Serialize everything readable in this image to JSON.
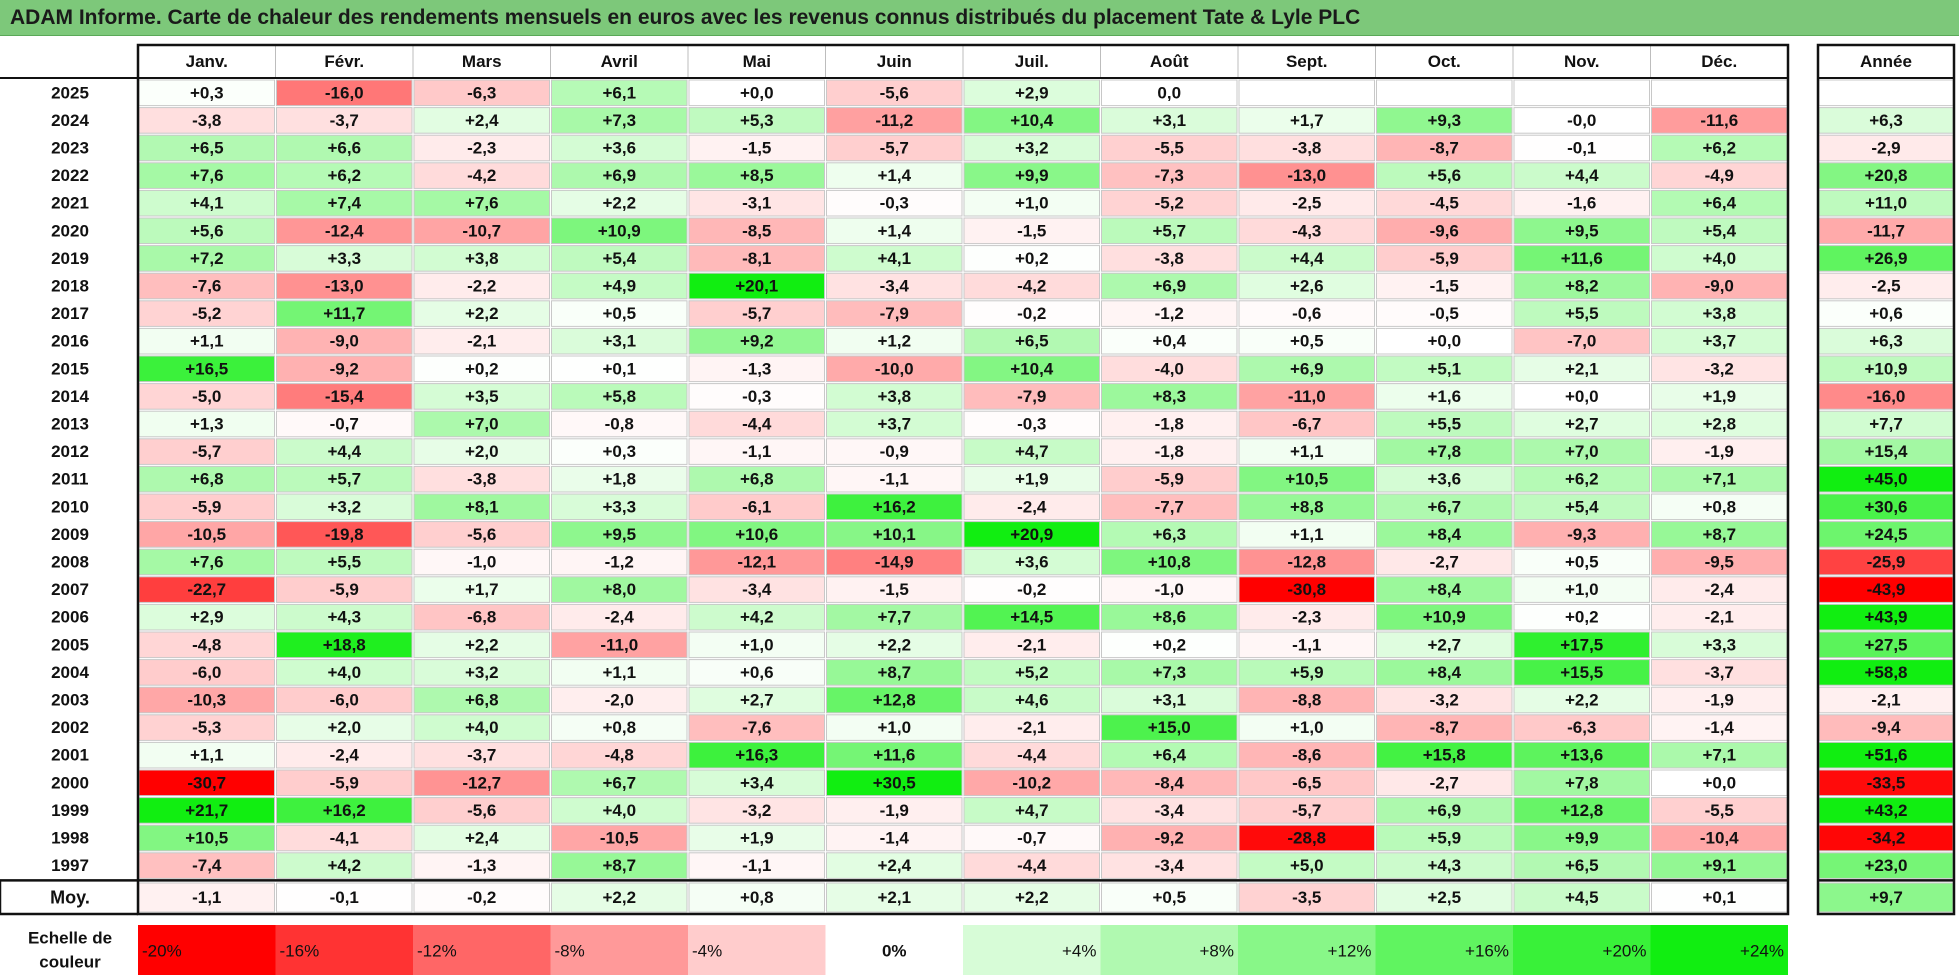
{
  "title": "ADAM Informe. Carte de chaleur des rendements mensuels en euros avec les revenus connus distribués du placement Tate & Lyle PLC",
  "chart_data": {
    "type": "heatmap",
    "title": "ADAM Informe. Carte de chaleur des rendements mensuels en euros avec les revenus connus distribués du placement Tate & Lyle PLC",
    "columns": [
      "Janv.",
      "Févr.",
      "Mars",
      "Avril",
      "Mai",
      "Juin",
      "Juil.",
      "Août",
      "Sept.",
      "Oct.",
      "Nov.",
      "Déc."
    ],
    "annual_header": "Année",
    "rows": [
      {
        "year": "2025",
        "values": [
          "+0,3",
          "-16,0",
          "-6,3",
          "+6,1",
          "+0,0",
          "-5,6",
          "+2,9",
          "0,0",
          "",
          "",
          "",
          ""
        ],
        "annual": ""
      },
      {
        "year": "2024",
        "values": [
          "-3,8",
          "-3,7",
          "+2,4",
          "+7,3",
          "+5,3",
          "-11,2",
          "+10,4",
          "+3,1",
          "+1,7",
          "+9,3",
          "-0,0",
          "-11,6"
        ],
        "annual": "+6,3"
      },
      {
        "year": "2023",
        "values": [
          "+6,5",
          "+6,6",
          "-2,3",
          "+3,6",
          "-1,5",
          "-5,7",
          "+3,2",
          "-5,5",
          "-3,8",
          "-8,7",
          "-0,1",
          "+6,2"
        ],
        "annual": "-2,9"
      },
      {
        "year": "2022",
        "values": [
          "+7,6",
          "+6,2",
          "-4,2",
          "+6,9",
          "+8,5",
          "+1,4",
          "+9,9",
          "-7,3",
          "-13,0",
          "+5,6",
          "+4,4",
          "-4,9"
        ],
        "annual": "+20,8"
      },
      {
        "year": "2021",
        "values": [
          "+4,1",
          "+7,4",
          "+7,6",
          "+2,2",
          "-3,1",
          "-0,3",
          "+1,0",
          "-5,2",
          "-2,5",
          "-4,5",
          "-1,6",
          "+6,4"
        ],
        "annual": "+11,0"
      },
      {
        "year": "2020",
        "values": [
          "+5,6",
          "-12,4",
          "-10,7",
          "+10,9",
          "-8,5",
          "+1,4",
          "-1,5",
          "+5,7",
          "-4,3",
          "-9,6",
          "+9,5",
          "+5,4"
        ],
        "annual": "-11,7"
      },
      {
        "year": "2019",
        "values": [
          "+7,2",
          "+3,3",
          "+3,8",
          "+5,4",
          "-8,1",
          "+4,1",
          "+0,2",
          "-3,8",
          "+4,4",
          "-5,9",
          "+11,6",
          "+4,0"
        ],
        "annual": "+26,9"
      },
      {
        "year": "2018",
        "values": [
          "-7,6",
          "-13,0",
          "-2,2",
          "+4,9",
          "+20,1",
          "-3,4",
          "-4,2",
          "+6,9",
          "+2,6",
          "-1,5",
          "+8,2",
          "-9,0"
        ],
        "annual": "-2,5"
      },
      {
        "year": "2017",
        "values": [
          "-5,2",
          "+11,7",
          "+2,2",
          "+0,5",
          "-5,7",
          "-7,9",
          "-0,2",
          "-1,2",
          "-0,6",
          "-0,5",
          "+5,5",
          "+3,8"
        ],
        "annual": "+0,6"
      },
      {
        "year": "2016",
        "values": [
          "+1,1",
          "-9,0",
          "-2,1",
          "+3,1",
          "+9,2",
          "+1,2",
          "+6,5",
          "+0,4",
          "+0,5",
          "+0,0",
          "-7,0",
          "+3,7"
        ],
        "annual": "+6,3"
      },
      {
        "year": "2015",
        "values": [
          "+16,5",
          "-9,2",
          "+0,2",
          "+0,1",
          "-1,3",
          "-10,0",
          "+10,4",
          "-4,0",
          "+6,9",
          "+5,1",
          "+2,1",
          "-3,2"
        ],
        "annual": "+10,9"
      },
      {
        "year": "2014",
        "values": [
          "-5,0",
          "-15,4",
          "+3,5",
          "+5,8",
          "-0,3",
          "+3,8",
          "-7,9",
          "+8,3",
          "-11,0",
          "+1,6",
          "+0,0",
          "+1,9"
        ],
        "annual": "-16,0"
      },
      {
        "year": "2013",
        "values": [
          "+1,3",
          "-0,7",
          "+7,0",
          "-0,8",
          "-4,4",
          "+3,7",
          "-0,3",
          "-1,8",
          "-6,7",
          "+5,5",
          "+2,7",
          "+2,8"
        ],
        "annual": "+7,7"
      },
      {
        "year": "2012",
        "values": [
          "-5,7",
          "+4,4",
          "+2,0",
          "+0,3",
          "-1,1",
          "-0,9",
          "+4,7",
          "-1,8",
          "+1,1",
          "+7,8",
          "+7,0",
          "-1,9"
        ],
        "annual": "+15,4"
      },
      {
        "year": "2011",
        "values": [
          "+6,8",
          "+5,7",
          "-3,8",
          "+1,8",
          "+6,8",
          "-1,1",
          "+1,9",
          "-5,9",
          "+10,5",
          "+3,6",
          "+6,2",
          "+7,1"
        ],
        "annual": "+45,0"
      },
      {
        "year": "2010",
        "values": [
          "-5,9",
          "+3,2",
          "+8,1",
          "+3,3",
          "-6,1",
          "+16,2",
          "-2,4",
          "-7,7",
          "+8,8",
          "+6,7",
          "+5,4",
          "+0,8"
        ],
        "annual": "+30,6"
      },
      {
        "year": "2009",
        "values": [
          "-10,5",
          "-19,8",
          "-5,6",
          "+9,5",
          "+10,6",
          "+10,1",
          "+20,9",
          "+6,3",
          "+1,1",
          "+8,4",
          "-9,3",
          "+8,7"
        ],
        "annual": "+24,5"
      },
      {
        "year": "2008",
        "values": [
          "+7,6",
          "+5,5",
          "-1,0",
          "-1,2",
          "-12,1",
          "-14,9",
          "+3,6",
          "+10,8",
          "-12,8",
          "-2,7",
          "+0,5",
          "-9,5"
        ],
        "annual": "-25,9"
      },
      {
        "year": "2007",
        "values": [
          "-22,7",
          "-5,9",
          "+1,7",
          "+8,0",
          "-3,4",
          "-1,5",
          "-0,2",
          "-1,0",
          "-30,8",
          "+8,4",
          "+1,0",
          "-2,4"
        ],
        "annual": "-43,9"
      },
      {
        "year": "2006",
        "values": [
          "+2,9",
          "+4,3",
          "-6,8",
          "-2,4",
          "+4,2",
          "+7,7",
          "+14,5",
          "+8,6",
          "-2,3",
          "+10,9",
          "+0,2",
          "-2,1"
        ],
        "annual": "+43,9"
      },
      {
        "year": "2005",
        "values": [
          "-4,8",
          "+18,8",
          "+2,2",
          "-11,0",
          "+1,0",
          "+2,2",
          "-2,1",
          "+0,2",
          "-1,1",
          "+2,7",
          "+17,5",
          "+3,3"
        ],
        "annual": "+27,5"
      },
      {
        "year": "2004",
        "values": [
          "-6,0",
          "+4,0",
          "+3,2",
          "+1,1",
          "+0,6",
          "+8,7",
          "+5,2",
          "+7,3",
          "+5,9",
          "+8,4",
          "+15,5",
          "-3,7"
        ],
        "annual": "+58,8"
      },
      {
        "year": "2003",
        "values": [
          "-10,3",
          "-6,0",
          "+6,8",
          "-2,0",
          "+2,7",
          "+12,8",
          "+4,6",
          "+3,1",
          "-8,8",
          "-3,2",
          "+2,2",
          "-1,9"
        ],
        "annual": "-2,1"
      },
      {
        "year": "2002",
        "values": [
          "-5,3",
          "+2,0",
          "+4,0",
          "+0,8",
          "-7,6",
          "+1,0",
          "-2,1",
          "+15,0",
          "+1,0",
          "-8,7",
          "-6,3",
          "-1,4"
        ],
        "annual": "-9,4"
      },
      {
        "year": "2001",
        "values": [
          "+1,1",
          "-2,4",
          "-3,7",
          "-4,8",
          "+16,3",
          "+11,6",
          "-4,4",
          "+6,4",
          "-8,6",
          "+15,8",
          "+13,6",
          "+7,1"
        ],
        "annual": "+51,6"
      },
      {
        "year": "2000",
        "values": [
          "-30,7",
          "-5,9",
          "-12,7",
          "+6,7",
          "+3,4",
          "+30,5",
          "-10,2",
          "-8,4",
          "-6,5",
          "-2,7",
          "+7,8",
          "+0,0"
        ],
        "annual": "-33,5"
      },
      {
        "year": "1999",
        "values": [
          "+21,7",
          "+16,2",
          "-5,6",
          "+4,0",
          "-3,2",
          "-1,9",
          "+4,7",
          "-3,4",
          "-5,7",
          "+6,9",
          "+12,8",
          "-5,5"
        ],
        "annual": "+43,2"
      },
      {
        "year": "1998",
        "values": [
          "+10,5",
          "-4,1",
          "+2,4",
          "-10,5",
          "+1,9",
          "-1,4",
          "-0,7",
          "-9,2",
          "-28,8",
          "+5,9",
          "+9,9",
          "-10,4"
        ],
        "annual": "-34,2"
      },
      {
        "year": "1997",
        "values": [
          "-7,4",
          "+4,2",
          "-1,3",
          "+8,7",
          "-1,1",
          "+2,4",
          "-4,4",
          "-3,4",
          "+5,0",
          "+4,3",
          "+6,5",
          "+9,1"
        ],
        "annual": "+23,0"
      }
    ],
    "average": {
      "label": "Moy.",
      "values": [
        "-1,1",
        "-0,1",
        "-0,2",
        "+2,2",
        "+0,8",
        "+2,1",
        "+2,2",
        "+0,5",
        "-3,5",
        "+2,5",
        "+4,5",
        "+0,1"
      ],
      "annual": "+9,7"
    },
    "scale": {
      "label": [
        "Echelle de",
        "couleur"
      ],
      "steps": [
        "-20%",
        "-16%",
        "-12%",
        "-8%",
        "-4%",
        "0%",
        "+4%",
        "+8%",
        "+12%",
        "+16%",
        "+20%",
        "+24%"
      ],
      "values": [
        -20,
        -16,
        -12,
        -8,
        -4,
        0,
        4,
        8,
        12,
        16,
        20,
        24
      ]
    },
    "colors": {
      "negative": "#ff0000",
      "neutral": "#ffffff",
      "positive": "#00ee00",
      "title_bg": "#7dc87a"
    }
  }
}
